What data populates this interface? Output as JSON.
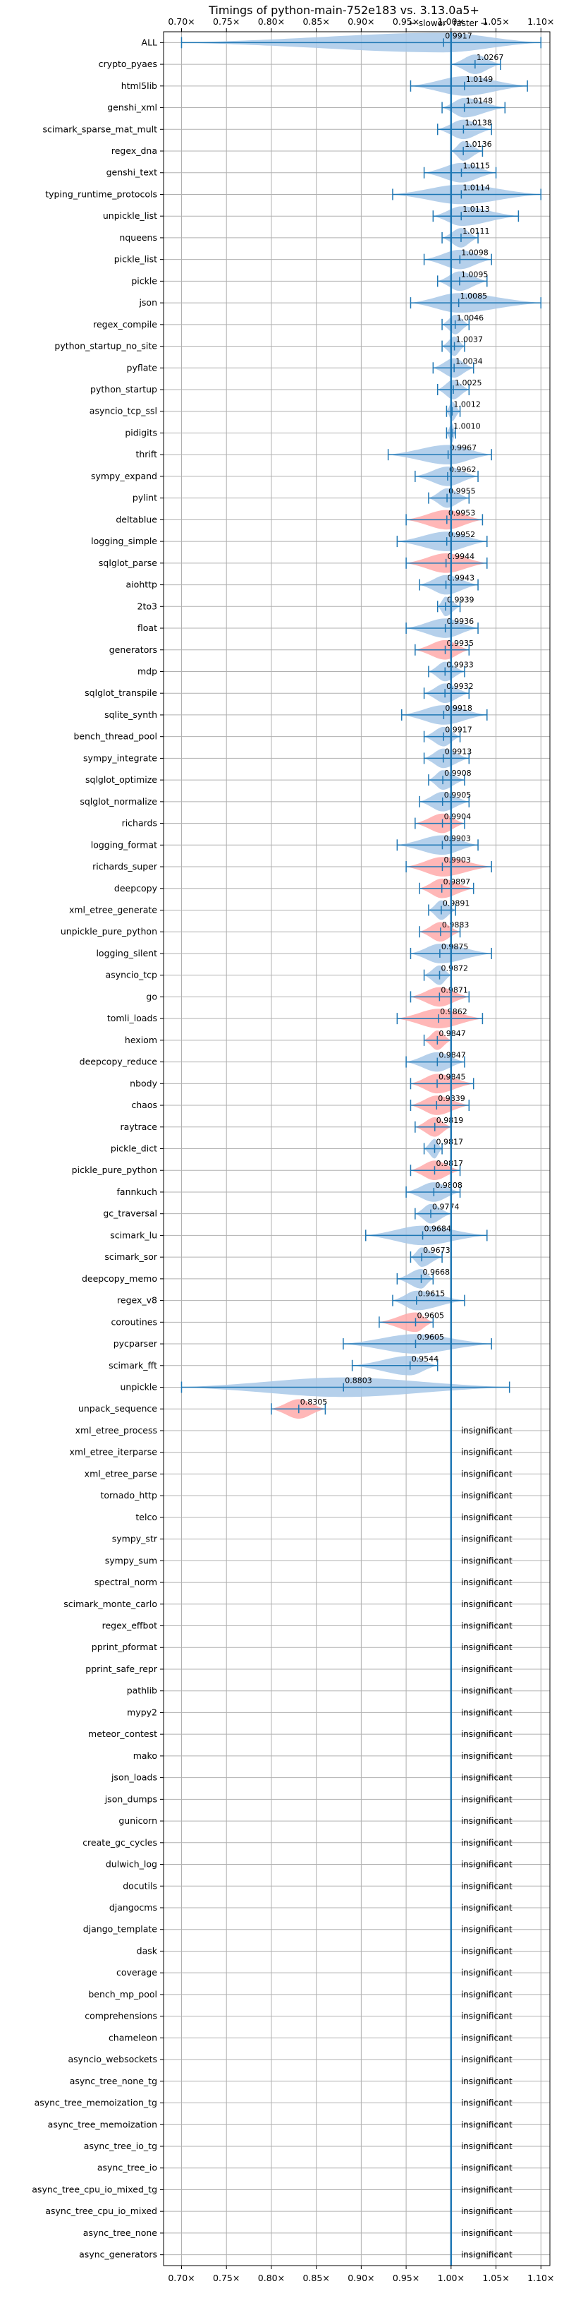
{
  "chart_data": {
    "type": "violin",
    "title": "Timings of python-main-752e183 vs. 3.13.0a5+",
    "direction_labels": {
      "slower": "← slower",
      "faster": "faster →"
    },
    "xlim": [
      0.68,
      1.11
    ],
    "x_ticks": [
      0.7,
      0.75,
      0.8,
      0.85,
      0.9,
      0.95,
      1.0,
      1.05,
      1.1
    ],
    "x_tick_labels": [
      "0.70×",
      "0.75×",
      "0.80×",
      "0.85×",
      "0.90×",
      "0.95×",
      "1.00×",
      "1.05×",
      "1.10×"
    ],
    "reference_line": 1.0,
    "grid": true,
    "colors": {
      "slower": "#ffaaaa",
      "faster": "#a8c8e8",
      "line": "#1f77b4"
    },
    "insignificant_label": "insignificant",
    "benchmarks": [
      {
        "name": "ALL",
        "value": 0.9917,
        "label": "0.9917",
        "lo": 0.7,
        "hi": 1.1,
        "color": "faster"
      },
      {
        "name": "crypto_pyaes",
        "value": 1.0267,
        "label": "1.0267",
        "lo": 1.0,
        "hi": 1.055,
        "color": "faster"
      },
      {
        "name": "html5lib",
        "value": 1.0149,
        "label": "1.0149",
        "lo": 0.955,
        "hi": 1.085,
        "color": "faster"
      },
      {
        "name": "genshi_xml",
        "value": 1.0148,
        "label": "1.0148",
        "lo": 0.99,
        "hi": 1.06,
        "color": "faster"
      },
      {
        "name": "scimark_sparse_mat_mult",
        "value": 1.0138,
        "label": "1.0138",
        "lo": 0.985,
        "hi": 1.045,
        "color": "faster"
      },
      {
        "name": "regex_dna",
        "value": 1.0136,
        "label": "1.0136",
        "lo": 1.0,
        "hi": 1.035,
        "color": "faster"
      },
      {
        "name": "genshi_text",
        "value": 1.0115,
        "label": "1.0115",
        "lo": 0.97,
        "hi": 1.05,
        "color": "faster"
      },
      {
        "name": "typing_runtime_protocols",
        "value": 1.0114,
        "label": "1.0114",
        "lo": 0.935,
        "hi": 1.1,
        "color": "faster"
      },
      {
        "name": "unpickle_list",
        "value": 1.0113,
        "label": "1.0113",
        "lo": 0.98,
        "hi": 1.075,
        "color": "faster"
      },
      {
        "name": "nqueens",
        "value": 1.0111,
        "label": "1.0111",
        "lo": 0.99,
        "hi": 1.03,
        "color": "faster"
      },
      {
        "name": "pickle_list",
        "value": 1.0098,
        "label": "1.0098",
        "lo": 0.97,
        "hi": 1.045,
        "color": "faster"
      },
      {
        "name": "pickle",
        "value": 1.0095,
        "label": "1.0095",
        "lo": 0.985,
        "hi": 1.04,
        "color": "faster"
      },
      {
        "name": "json",
        "value": 1.0085,
        "label": "1.0085",
        "lo": 0.955,
        "hi": 1.1,
        "color": "faster"
      },
      {
        "name": "regex_compile",
        "value": 1.0046,
        "label": "1.0046",
        "lo": 0.99,
        "hi": 1.02,
        "color": "faster"
      },
      {
        "name": "python_startup_no_site",
        "value": 1.0037,
        "label": "1.0037",
        "lo": 0.99,
        "hi": 1.015,
        "color": "faster"
      },
      {
        "name": "pyflate",
        "value": 1.0034,
        "label": "1.0034",
        "lo": 0.98,
        "hi": 1.025,
        "color": "faster"
      },
      {
        "name": "python_startup",
        "value": 1.0025,
        "label": "1.0025",
        "lo": 0.985,
        "hi": 1.02,
        "color": "faster"
      },
      {
        "name": "asyncio_tcp_ssl",
        "value": 1.0012,
        "label": "1.0012",
        "lo": 0.995,
        "hi": 1.01,
        "color": "faster"
      },
      {
        "name": "pidigits",
        "value": 1.001,
        "label": "1.0010",
        "lo": 0.995,
        "hi": 1.005,
        "color": "faster"
      },
      {
        "name": "thrift",
        "value": 0.9967,
        "label": "0.9967",
        "lo": 0.93,
        "hi": 1.045,
        "color": "faster"
      },
      {
        "name": "sympy_expand",
        "value": 0.9962,
        "label": "0.9962",
        "lo": 0.96,
        "hi": 1.03,
        "color": "faster"
      },
      {
        "name": "pylint",
        "value": 0.9955,
        "label": "0.9955",
        "lo": 0.975,
        "hi": 1.02,
        "color": "faster"
      },
      {
        "name": "deltablue",
        "value": 0.9953,
        "label": "0.9953",
        "lo": 0.95,
        "hi": 1.035,
        "color": "slower"
      },
      {
        "name": "logging_simple",
        "value": 0.9952,
        "label": "0.9952",
        "lo": 0.94,
        "hi": 1.04,
        "color": "faster"
      },
      {
        "name": "sqlglot_parse",
        "value": 0.9944,
        "label": "0.9944",
        "lo": 0.95,
        "hi": 1.04,
        "color": "slower"
      },
      {
        "name": "aiohttp",
        "value": 0.9943,
        "label": "0.9943",
        "lo": 0.965,
        "hi": 1.03,
        "color": "faster"
      },
      {
        "name": "2to3",
        "value": 0.9939,
        "label": "0.9939",
        "lo": 0.985,
        "hi": 1.01,
        "color": "faster"
      },
      {
        "name": "float",
        "value": 0.9936,
        "label": "0.9936",
        "lo": 0.95,
        "hi": 1.03,
        "color": "faster"
      },
      {
        "name": "generators",
        "value": 0.9935,
        "label": "0.9935",
        "lo": 0.96,
        "hi": 1.02,
        "color": "slower"
      },
      {
        "name": "mdp",
        "value": 0.9933,
        "label": "0.9933",
        "lo": 0.975,
        "hi": 1.015,
        "color": "faster"
      },
      {
        "name": "sqlglot_transpile",
        "value": 0.9932,
        "label": "0.9932",
        "lo": 0.97,
        "hi": 1.02,
        "color": "faster"
      },
      {
        "name": "sqlite_synth",
        "value": 0.9918,
        "label": "0.9918",
        "lo": 0.945,
        "hi": 1.04,
        "color": "faster"
      },
      {
        "name": "bench_thread_pool",
        "value": 0.9917,
        "label": "0.9917",
        "lo": 0.97,
        "hi": 1.01,
        "color": "faster"
      },
      {
        "name": "sympy_integrate",
        "value": 0.9913,
        "label": "0.9913",
        "lo": 0.97,
        "hi": 1.02,
        "color": "faster"
      },
      {
        "name": "sqlglot_optimize",
        "value": 0.9908,
        "label": "0.9908",
        "lo": 0.975,
        "hi": 1.015,
        "color": "faster"
      },
      {
        "name": "sqlglot_normalize",
        "value": 0.9905,
        "label": "0.9905",
        "lo": 0.965,
        "hi": 1.02,
        "color": "faster"
      },
      {
        "name": "richards",
        "value": 0.9904,
        "label": "0.9904",
        "lo": 0.96,
        "hi": 1.015,
        "color": "slower"
      },
      {
        "name": "logging_format",
        "value": 0.9903,
        "label": "0.9903",
        "lo": 0.94,
        "hi": 1.03,
        "color": "faster"
      },
      {
        "name": "richards_super",
        "value": 0.9903,
        "label": "0.9903",
        "lo": 0.95,
        "hi": 1.045,
        "color": "slower"
      },
      {
        "name": "deepcopy",
        "value": 0.9897,
        "label": "0.9897",
        "lo": 0.965,
        "hi": 1.025,
        "color": "slower"
      },
      {
        "name": "xml_etree_generate",
        "value": 0.9891,
        "label": "0.9891",
        "lo": 0.975,
        "hi": 1.005,
        "color": "faster"
      },
      {
        "name": "unpickle_pure_python",
        "value": 0.9883,
        "label": "0.9883",
        "lo": 0.965,
        "hi": 1.01,
        "color": "slower"
      },
      {
        "name": "logging_silent",
        "value": 0.9875,
        "label": "0.9875",
        "lo": 0.955,
        "hi": 1.045,
        "color": "faster"
      },
      {
        "name": "asyncio_tcp",
        "value": 0.9872,
        "label": "0.9872",
        "lo": 0.97,
        "hi": 1.0,
        "color": "faster"
      },
      {
        "name": "go",
        "value": 0.9871,
        "label": "0.9871",
        "lo": 0.955,
        "hi": 1.02,
        "color": "slower"
      },
      {
        "name": "tomli_loads",
        "value": 0.9862,
        "label": "0.9862",
        "lo": 0.94,
        "hi": 1.035,
        "color": "slower"
      },
      {
        "name": "hexiom",
        "value": 0.9847,
        "label": "0.9847",
        "lo": 0.97,
        "hi": 1.0,
        "color": "slower"
      },
      {
        "name": "deepcopy_reduce",
        "value": 0.9847,
        "label": "0.9847",
        "lo": 0.95,
        "hi": 1.015,
        "color": "faster"
      },
      {
        "name": "nbody",
        "value": 0.9845,
        "label": "0.9845",
        "lo": 0.955,
        "hi": 1.025,
        "color": "slower"
      },
      {
        "name": "chaos",
        "value": 0.9839,
        "label": "0.9839",
        "lo": 0.955,
        "hi": 1.02,
        "color": "slower"
      },
      {
        "name": "raytrace",
        "value": 0.9819,
        "label": "0.9819",
        "lo": 0.96,
        "hi": 1.0,
        "color": "slower"
      },
      {
        "name": "pickle_dict",
        "value": 0.9817,
        "label": "0.9817",
        "lo": 0.97,
        "hi": 0.99,
        "color": "faster"
      },
      {
        "name": "pickle_pure_python",
        "value": 0.9817,
        "label": "0.9817",
        "lo": 0.955,
        "hi": 1.01,
        "color": "slower"
      },
      {
        "name": "fannkuch",
        "value": 0.9808,
        "label": "0.9808",
        "lo": 0.95,
        "hi": 1.01,
        "color": "faster"
      },
      {
        "name": "gc_traversal",
        "value": 0.9774,
        "label": "0.9774",
        "lo": 0.96,
        "hi": 1.0,
        "color": "faster"
      },
      {
        "name": "scimark_lu",
        "value": 0.9684,
        "label": "0.9684",
        "lo": 0.905,
        "hi": 1.04,
        "color": "faster"
      },
      {
        "name": "scimark_sor",
        "value": 0.9673,
        "label": "0.9673",
        "lo": 0.955,
        "hi": 0.99,
        "color": "faster"
      },
      {
        "name": "deepcopy_memo",
        "value": 0.9668,
        "label": "0.9668",
        "lo": 0.94,
        "hi": 0.98,
        "color": "faster"
      },
      {
        "name": "regex_v8",
        "value": 0.9615,
        "label": "0.9615",
        "lo": 0.935,
        "hi": 1.015,
        "color": "faster"
      },
      {
        "name": "coroutines",
        "value": 0.9605,
        "label": "0.9605",
        "lo": 0.92,
        "hi": 0.98,
        "color": "slower"
      },
      {
        "name": "pycparser",
        "value": 0.9605,
        "label": "0.9605",
        "lo": 0.88,
        "hi": 1.045,
        "color": "faster"
      },
      {
        "name": "scimark_fft",
        "value": 0.9544,
        "label": "0.9544",
        "lo": 0.89,
        "hi": 0.985,
        "color": "faster"
      },
      {
        "name": "unpickle",
        "value": 0.8803,
        "label": "0.8803",
        "lo": 0.7,
        "hi": 1.065,
        "color": "faster"
      },
      {
        "name": "unpack_sequence",
        "value": 0.8305,
        "label": "0.8305",
        "lo": 0.8,
        "hi": 0.86,
        "color": "slower"
      },
      {
        "name": "xml_etree_process",
        "insignificant": true
      },
      {
        "name": "xml_etree_iterparse",
        "insignificant": true
      },
      {
        "name": "xml_etree_parse",
        "insignificant": true
      },
      {
        "name": "tornado_http",
        "insignificant": true
      },
      {
        "name": "telco",
        "insignificant": true
      },
      {
        "name": "sympy_str",
        "insignificant": true
      },
      {
        "name": "sympy_sum",
        "insignificant": true
      },
      {
        "name": "spectral_norm",
        "insignificant": true
      },
      {
        "name": "scimark_monte_carlo",
        "insignificant": true
      },
      {
        "name": "regex_effbot",
        "insignificant": true
      },
      {
        "name": "pprint_pformat",
        "insignificant": true
      },
      {
        "name": "pprint_safe_repr",
        "insignificant": true
      },
      {
        "name": "pathlib",
        "insignificant": true
      },
      {
        "name": "mypy2",
        "insignificant": true
      },
      {
        "name": "meteor_contest",
        "insignificant": true
      },
      {
        "name": "mako",
        "insignificant": true
      },
      {
        "name": "json_loads",
        "insignificant": true
      },
      {
        "name": "json_dumps",
        "insignificant": true
      },
      {
        "name": "gunicorn",
        "insignificant": true
      },
      {
        "name": "create_gc_cycles",
        "insignificant": true
      },
      {
        "name": "dulwich_log",
        "insignificant": true
      },
      {
        "name": "docutils",
        "insignificant": true
      },
      {
        "name": "djangocms",
        "insignificant": true
      },
      {
        "name": "django_template",
        "insignificant": true
      },
      {
        "name": "dask",
        "insignificant": true
      },
      {
        "name": "coverage",
        "insignificant": true
      },
      {
        "name": "bench_mp_pool",
        "insignificant": true
      },
      {
        "name": "comprehensions",
        "insignificant": true
      },
      {
        "name": "chameleon",
        "insignificant": true
      },
      {
        "name": "asyncio_websockets",
        "insignificant": true
      },
      {
        "name": "async_tree_none_tg",
        "insignificant": true
      },
      {
        "name": "async_tree_memoization_tg",
        "insignificant": true
      },
      {
        "name": "async_tree_memoization",
        "insignificant": true
      },
      {
        "name": "async_tree_io_tg",
        "insignificant": true
      },
      {
        "name": "async_tree_io",
        "insignificant": true
      },
      {
        "name": "async_tree_cpu_io_mixed_tg",
        "insignificant": true
      },
      {
        "name": "async_tree_cpu_io_mixed",
        "insignificant": true
      },
      {
        "name": "async_tree_none",
        "insignificant": true
      },
      {
        "name": "async_generators",
        "insignificant": true
      }
    ]
  }
}
